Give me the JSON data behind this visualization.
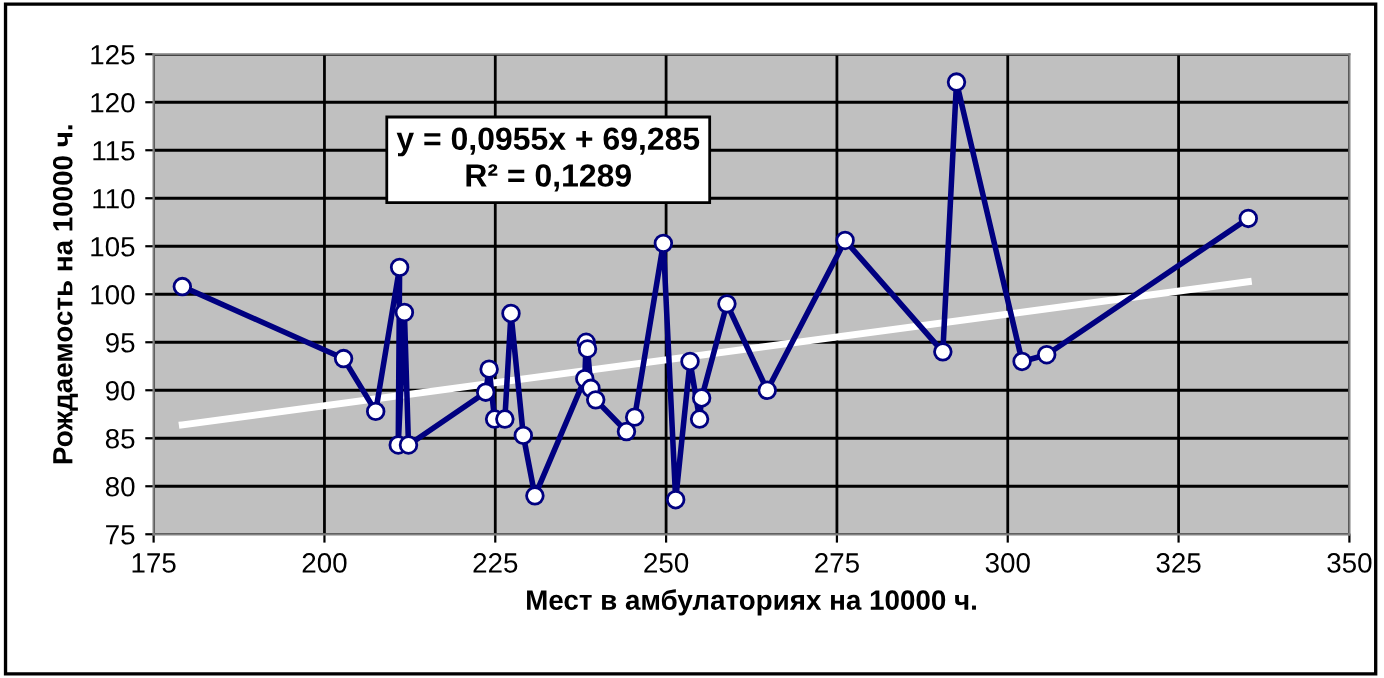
{
  "chart_data": {
    "type": "line",
    "xlabel": "Мест в амбулаториях на 10000 ч.",
    "ylabel": "Рождаемость на 10000 ч.",
    "xlim": [
      175,
      350
    ],
    "xticks": [
      175,
      200,
      225,
      250,
      275,
      300,
      325,
      350
    ],
    "ylim": [
      75,
      125
    ],
    "yticks": [
      75,
      80,
      85,
      90,
      95,
      100,
      105,
      110,
      115,
      120,
      125
    ],
    "grid": true,
    "marker": "circle",
    "line_style": "solid",
    "series": [
      {
        "color": "#000080",
        "x": [
          179.2,
          202.8,
          207.5,
          211.0,
          210.8,
          211.7,
          212.3,
          223.6,
          224.1,
          224.9,
          226.4,
          227.3,
          229.1,
          230.8,
          238.1,
          238.3,
          238.5,
          239.0,
          239.7,
          244.2,
          245.4,
          249.6,
          251.4,
          253.5,
          254.9,
          255.2,
          258.9,
          264.8,
          276.2,
          290.5,
          292.5,
          302.1,
          305.7,
          335.2
        ],
        "values": [
          100.8,
          93.3,
          87.8,
          102.8,
          84.3,
          98.1,
          84.3,
          89.8,
          92.2,
          87.0,
          87.0,
          98.0,
          85.3,
          79.0,
          91.2,
          95.0,
          94.3,
          90.2,
          89.0,
          85.7,
          87.2,
          105.3,
          78.6,
          93.0,
          87.0,
          89.2,
          99.0,
          90.0,
          105.6,
          94.0,
          122.1,
          93.0,
          93.7,
          107.9
        ]
      },
      {
        "color": "#ffffff",
        "marker": "none",
        "x": [
          179.2,
          335.2
        ],
        "values": [
          86.4,
          101.3
        ]
      }
    ],
    "annotations": [
      "y = 0,0955x + 69,285\nR² = 0,1289"
    ]
  }
}
